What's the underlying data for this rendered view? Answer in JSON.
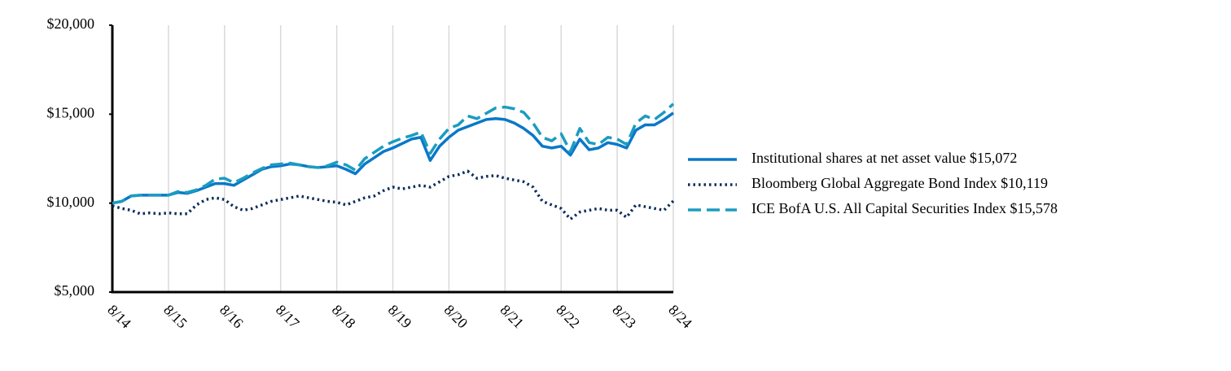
{
  "chart_data": {
    "type": "line",
    "categories": [
      "8/14",
      null,
      null,
      null,
      null,
      null,
      "8/15",
      null,
      null,
      null,
      null,
      null,
      "8/16",
      null,
      null,
      null,
      null,
      null,
      "8/17",
      null,
      null,
      null,
      null,
      null,
      "8/18",
      null,
      null,
      null,
      null,
      null,
      "8/19",
      null,
      null,
      null,
      null,
      null,
      "8/20",
      null,
      null,
      null,
      null,
      null,
      "8/21",
      null,
      null,
      null,
      null,
      null,
      "8/22",
      null,
      null,
      null,
      null,
      null,
      "8/23",
      null,
      null,
      null,
      null,
      null,
      "8/24"
    ],
    "series": [
      {
        "name": "Institutional shares at net asset value $15,072",
        "color": "#0a78c8",
        "dash": "solid",
        "values": [
          10000,
          10100,
          10400,
          10450,
          10450,
          10450,
          10450,
          10600,
          10550,
          10700,
          10900,
          11100,
          11100,
          11000,
          11300,
          11600,
          11900,
          12050,
          12100,
          12200,
          12150,
          12050,
          12000,
          12050,
          12100,
          11900,
          11650,
          12200,
          12550,
          12900,
          13100,
          13350,
          13600,
          13700,
          12400,
          13200,
          13700,
          14100,
          14300,
          14500,
          14700,
          14750,
          14700,
          14500,
          14200,
          13800,
          13200,
          13100,
          13200,
          12700,
          13600,
          13000,
          13100,
          13400,
          13300,
          13100,
          14100,
          14400,
          14400,
          14700,
          15072
        ]
      },
      {
        "name": "Bloomberg Global Aggregate Bond Index $10,119",
        "color": "#0d2d5a",
        "dash": "dotted",
        "values": [
          9850,
          9700,
          9600,
          9400,
          9450,
          9400,
          9450,
          9400,
          9400,
          9900,
          10200,
          10300,
          10200,
          9800,
          9600,
          9700,
          9900,
          10100,
          10200,
          10300,
          10400,
          10300,
          10200,
          10100,
          10050,
          9900,
          10100,
          10300,
          10400,
          10700,
          10900,
          10800,
          10900,
          11000,
          10900,
          11200,
          11500,
          11600,
          11800,
          11400,
          11500,
          11550,
          11400,
          11300,
          11200,
          10900,
          10100,
          9900,
          9700,
          9100,
          9500,
          9600,
          9700,
          9600,
          9600,
          9200,
          9900,
          9800,
          9700,
          9600,
          10119
        ]
      },
      {
        "name": "ICE BofA U.S. All Capital Securities Index $15,578",
        "color": "#1b9cc0",
        "dash": "dashed",
        "values": [
          10000,
          10100,
          10400,
          10450,
          10450,
          10450,
          10450,
          10650,
          10600,
          10750,
          11000,
          11350,
          11400,
          11150,
          11400,
          11700,
          11950,
          12150,
          12200,
          12250,
          12150,
          12050,
          12000,
          12100,
          12300,
          12150,
          11850,
          12500,
          12850,
          13200,
          13450,
          13650,
          13800,
          14000,
          12800,
          13600,
          14200,
          14400,
          14900,
          14750,
          15050,
          15350,
          15400,
          15300,
          15100,
          14500,
          13700,
          13500,
          13900,
          12900,
          14200,
          13400,
          13300,
          13700,
          13600,
          13300,
          14500,
          14900,
          14700,
          15100,
          15578
        ]
      }
    ],
    "ylim": [
      5000,
      20000
    ],
    "yticks": [
      {
        "value": 5000,
        "label": "$5,000"
      },
      {
        "value": 10000,
        "label": "$10,000"
      },
      {
        "value": 15000,
        "label": "$15,000"
      },
      {
        "value": 20000,
        "label": "$20,000"
      }
    ],
    "grid": true,
    "legend": "right"
  }
}
